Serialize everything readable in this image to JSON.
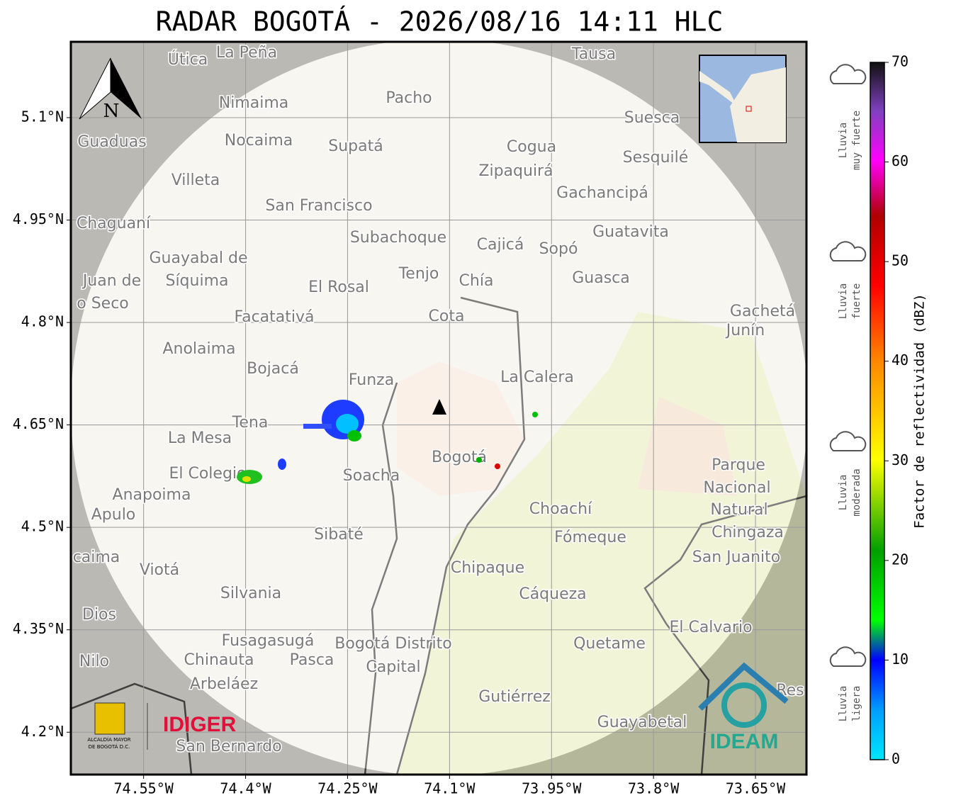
{
  "title": "RADAR BOGOTÁ - 2026/08/16 14:11 HLC",
  "north": "N",
  "map": {
    "xlim": [
      -74.657,
      -73.575
    ],
    "ylim": [
      4.138,
      5.211
    ],
    "grid": true,
    "xticks": [
      {
        "value": -74.55,
        "label": "74.55°W"
      },
      {
        "value": -74.4,
        "label": "74.4°W"
      },
      {
        "value": -74.25,
        "label": "74.25°W"
      },
      {
        "value": -74.1,
        "label": "74.1°W"
      },
      {
        "value": -73.95,
        "label": "73.95°W"
      },
      {
        "value": -73.8,
        "label": "73.8°W"
      },
      {
        "value": -73.65,
        "label": "73.65°W"
      }
    ],
    "yticks": [
      {
        "value": 5.1,
        "label": "5.1°N"
      },
      {
        "value": 4.95,
        "label": "4.95°N"
      },
      {
        "value": 4.8,
        "label": "4.8°N"
      },
      {
        "value": 4.65,
        "label": "4.65°N"
      },
      {
        "value": 4.5,
        "label": "4.5°N"
      },
      {
        "value": 4.35,
        "label": "4.35°N"
      },
      {
        "value": 4.2,
        "label": "4.2°N"
      }
    ],
    "places": [
      "La Peña",
      "Útica",
      "Tausa",
      "Pacho",
      "Nimaima",
      "Guaduas",
      "Nocaima",
      "Supatá",
      "Suesca",
      "Cogua",
      "Zipaquirá",
      "Sesquilé",
      "Villeta",
      "Gachancipá",
      "San Francisco",
      "Chaguaní",
      "Guatavita",
      "Subachoque",
      "Cajicá",
      "Sopó",
      "Guayabal de",
      "Síquima",
      "Juan de",
      "Tenjo",
      "Chía",
      "Guasca",
      "El Rosal",
      "o Seco",
      "Facatativá",
      "Cota",
      "Gachetá",
      "Junín",
      "Anolaima",
      "Bojacá",
      "Funza",
      "La Calera",
      "Tena",
      "La Mesa",
      "El Colegio",
      "Parque",
      "Nacional",
      "Natural",
      "Chingaza",
      "Soacha",
      "Bogotá",
      "Anapoima",
      "Apulo",
      "Choachí",
      "Fómeque",
      "Sibaté",
      "San Juanito",
      "caima",
      "Viotá",
      "Chipaque",
      "Cáqueza",
      "Silvania",
      "Dios",
      "El Calvario",
      "Fusagasugá",
      "Bogotá Distrito",
      "Capital",
      "Quetame",
      "Nilo",
      "Chinauta",
      "Pasca",
      "Arbeláez",
      "Gutiérrez",
      "Res",
      "Guayabetal",
      "San Bernardo"
    ]
  },
  "colorbar": {
    "label": "Factor de reflectividad (dBZ)",
    "lim": [
      0,
      70
    ],
    "ticks": [
      0,
      10,
      20,
      30,
      40,
      50,
      60,
      70
    ],
    "categories": [
      [
        "Lluvia",
        "muy fuerte"
      ],
      [
        "Lluvia",
        "fuerte"
      ],
      [
        "Lluvia",
        "moderada"
      ],
      [
        "Lluvia",
        "ligera"
      ]
    ]
  },
  "logos": {
    "alcaldia": [
      "ALCALDÍA MAYOR",
      "DE BOGOTÁ D.C."
    ],
    "idiger": "IDIGER",
    "ideam": "IDEAM"
  }
}
